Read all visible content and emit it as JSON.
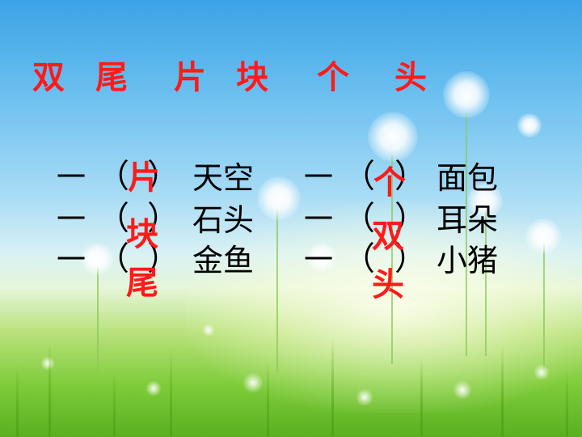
{
  "title_words": [
    "双",
    "尾",
    "片",
    "块",
    "个",
    "头"
  ],
  "left_column": {
    "rows": [
      {
        "dash": "一",
        "open": "（",
        "close": "）",
        "noun": "天空"
      },
      {
        "dash": "一",
        "open": "（",
        "close": "）",
        "noun": "石头"
      },
      {
        "dash": "一",
        "open": "（",
        "close": "）",
        "noun": "金鱼"
      }
    ],
    "answers": [
      "片",
      "块",
      "尾"
    ]
  },
  "right_column": {
    "rows": [
      {
        "dash": "一",
        "open": "（",
        "close": "）",
        "noun": "面包"
      },
      {
        "dash": "一",
        "open": "（",
        "close": "）",
        "noun": "耳朵"
      },
      {
        "dash": "一",
        "open": "（",
        "close": "）",
        "noun": "小猪"
      }
    ],
    "answers": [
      "个",
      "双",
      "头"
    ]
  },
  "colors": {
    "answer": "#ff1a1a",
    "text": "#000000",
    "sky": "#3aa3e6",
    "grass": "#58b020"
  }
}
